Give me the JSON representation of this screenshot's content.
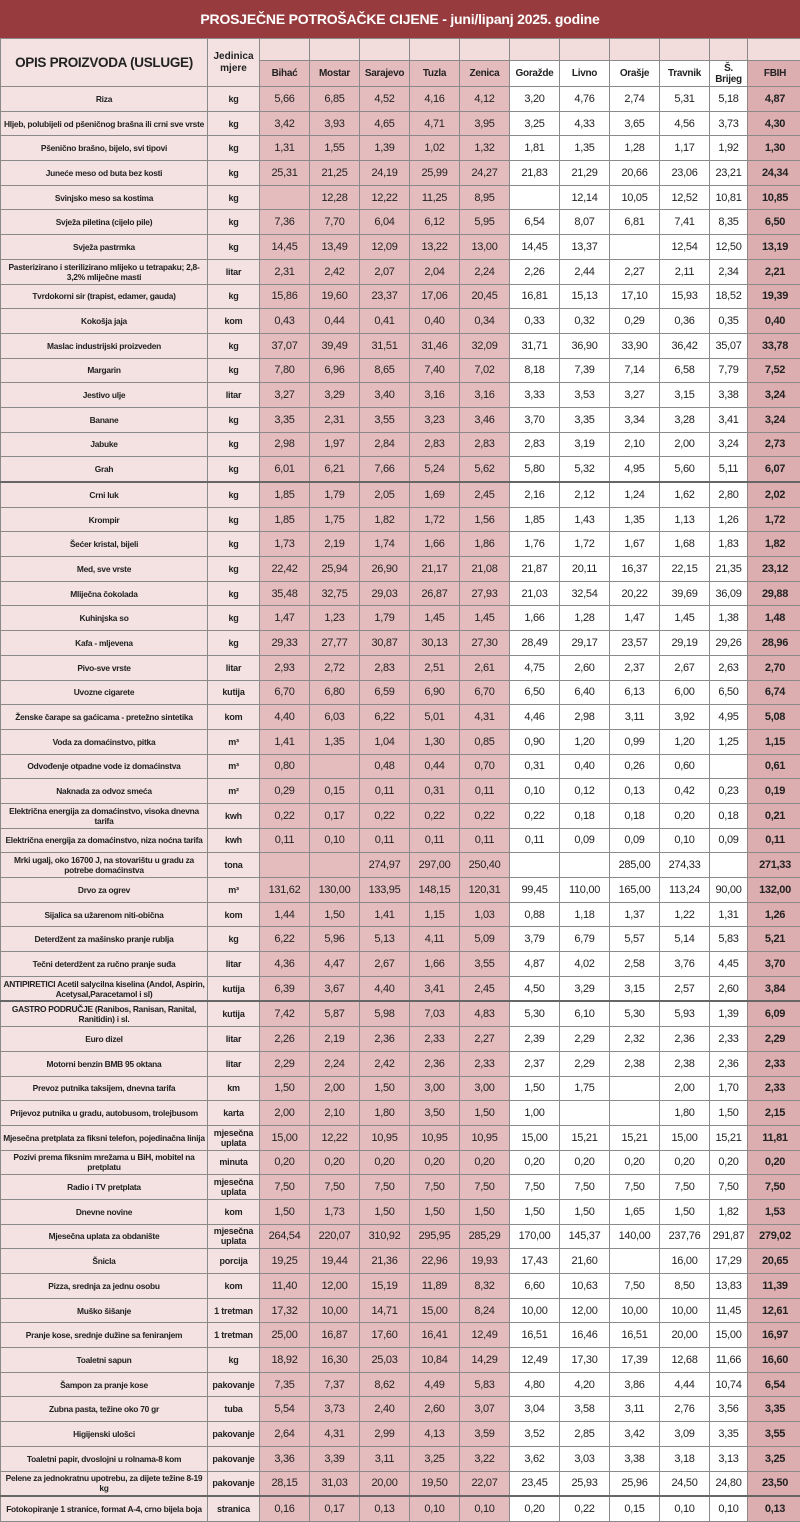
{
  "title": "PROSJEČNE POTROŠAČKE CIJENE - juni/lipanj 2025. godine",
  "header": {
    "description": "OPIS PROIZVODA (USLUGE)",
    "unit": "Jedinica mjere",
    "cities": [
      "Bihać",
      "Mostar",
      "Sarajevo",
      "Tuzla",
      "Zenica",
      "Goražde",
      "Livno",
      "Orašje",
      "Travnik",
      "Š. Brijeg",
      "FBIH"
    ]
  },
  "colors": {
    "title_bar": "#983b3e",
    "highlight_cities": "#e5bcbd",
    "fbih": "#dcaeb0",
    "description_bg": "#f4e2e2"
  },
  "rows": [
    {
      "desc": "Riza",
      "unit": "kg",
      "values": [
        "5,66",
        "6,85",
        "4,52",
        "4,16",
        "4,12",
        "3,20",
        "4,76",
        "2,74",
        "5,31",
        "5,18",
        "4,87"
      ]
    },
    {
      "desc": "Hljeb, polubijeli od pšeničnog brašna ili crni sve vrste",
      "unit": "kg",
      "values": [
        "3,42",
        "3,93",
        "4,65",
        "4,71",
        "3,95",
        "3,25",
        "4,33",
        "3,65",
        "4,56",
        "3,73",
        "4,30"
      ]
    },
    {
      "desc": "Pšenično brašno, bijelo, svi tipovi",
      "unit": "kg",
      "values": [
        "1,31",
        "1,55",
        "1,39",
        "1,02",
        "1,32",
        "1,81",
        "1,35",
        "1,28",
        "1,17",
        "1,92",
        "1,30"
      ]
    },
    {
      "desc": "Juneće meso od buta bez kosti",
      "unit": "kg",
      "values": [
        "25,31",
        "21,25",
        "24,19",
        "25,99",
        "24,27",
        "21,83",
        "21,29",
        "20,66",
        "23,06",
        "23,21",
        "24,34"
      ]
    },
    {
      "desc": "Svinjsko meso sa kostima",
      "unit": "kg",
      "values": [
        "",
        "12,28",
        "12,22",
        "11,25",
        "8,95",
        "",
        "12,14",
        "10,05",
        "12,52",
        "10,81",
        "10,85"
      ]
    },
    {
      "desc": "Svježa piletina (cijelo pile)",
      "unit": "kg",
      "values": [
        "7,36",
        "7,70",
        "6,04",
        "6,12",
        "5,95",
        "6,54",
        "8,07",
        "6,81",
        "7,41",
        "8,35",
        "6,50"
      ]
    },
    {
      "desc": "Svježa pastrmka",
      "unit": "kg",
      "values": [
        "14,45",
        "13,49",
        "12,09",
        "13,22",
        "13,00",
        "14,45",
        "13,37",
        "",
        "12,54",
        "12,50",
        "13,19"
      ]
    },
    {
      "desc": "Pasterizirano i sterilizirano mlijeko u tetrapaku; 2,8-3,2% mliječne masti",
      "unit": "litar",
      "values": [
        "2,31",
        "2,42",
        "2,07",
        "2,04",
        "2,24",
        "2,26",
        "2,44",
        "2,27",
        "2,11",
        "2,34",
        "2,21"
      ]
    },
    {
      "desc": "Tvrdokorni sir (trapist, edamer, gauda)",
      "unit": "kg",
      "values": [
        "15,86",
        "19,60",
        "23,37",
        "17,06",
        "20,45",
        "16,81",
        "15,13",
        "17,10",
        "15,93",
        "18,52",
        "19,39"
      ]
    },
    {
      "desc": "Kokošja jaja",
      "unit": "kom",
      "values": [
        "0,43",
        "0,44",
        "0,41",
        "0,40",
        "0,34",
        "0,33",
        "0,32",
        "0,29",
        "0,36",
        "0,35",
        "0,40"
      ]
    },
    {
      "desc": "Maslac industrijski proizveden",
      "unit": "kg",
      "values": [
        "37,07",
        "39,49",
        "31,51",
        "31,46",
        "32,09",
        "31,71",
        "36,90",
        "33,90",
        "36,42",
        "35,07",
        "33,78"
      ]
    },
    {
      "desc": "Margarin",
      "unit": "kg",
      "values": [
        "7,80",
        "6,96",
        "8,65",
        "7,40",
        "7,02",
        "8,18",
        "7,39",
        "7,14",
        "6,58",
        "7,79",
        "7,52"
      ]
    },
    {
      "desc": "Jestivo ulje",
      "unit": "litar",
      "values": [
        "3,27",
        "3,29",
        "3,40",
        "3,16",
        "3,16",
        "3,33",
        "3,53",
        "3,27",
        "3,15",
        "3,38",
        "3,24"
      ]
    },
    {
      "desc": "Banane",
      "unit": "kg",
      "values": [
        "3,35",
        "2,31",
        "3,55",
        "3,23",
        "3,46",
        "3,70",
        "3,35",
        "3,34",
        "3,28",
        "3,41",
        "3,24"
      ]
    },
    {
      "desc": "Jabuke",
      "unit": "kg",
      "values": [
        "2,98",
        "1,97",
        "2,84",
        "2,83",
        "2,83",
        "2,83",
        "3,19",
        "2,10",
        "2,00",
        "3,24",
        "2,73"
      ]
    },
    {
      "desc": "Grah",
      "unit": "kg",
      "values": [
        "6,01",
        "6,21",
        "7,66",
        "5,24",
        "5,62",
        "5,80",
        "5,32",
        "4,95",
        "5,60",
        "5,11",
        "6,07"
      ]
    },
    {
      "desc": "Crni luk",
      "unit": "kg",
      "values": [
        "1,85",
        "1,79",
        "2,05",
        "1,69",
        "2,45",
        "2,16",
        "2,12",
        "1,24",
        "1,62",
        "2,80",
        "2,02"
      ]
    },
    {
      "desc": "Krompir",
      "unit": "kg",
      "values": [
        "1,85",
        "1,75",
        "1,82",
        "1,72",
        "1,56",
        "1,85",
        "1,43",
        "1,35",
        "1,13",
        "1,26",
        "1,72"
      ]
    },
    {
      "desc": "Šećer kristal, bijeli",
      "unit": "kg",
      "values": [
        "1,73",
        "2,19",
        "1,74",
        "1,66",
        "1,86",
        "1,76",
        "1,72",
        "1,67",
        "1,68",
        "1,83",
        "1,82"
      ]
    },
    {
      "desc": "Med, sve vrste",
      "unit": "kg",
      "values": [
        "22,42",
        "25,94",
        "26,90",
        "21,17",
        "21,08",
        "21,87",
        "20,11",
        "16,37",
        "22,15",
        "21,35",
        "23,12"
      ]
    },
    {
      "desc": "Mliječna čokolada",
      "unit": "kg",
      "values": [
        "35,48",
        "32,75",
        "29,03",
        "26,87",
        "27,93",
        "21,03",
        "32,54",
        "20,22",
        "39,69",
        "36,09",
        "29,88"
      ]
    },
    {
      "desc": "Kuhinjska so",
      "unit": "kg",
      "values": [
        "1,47",
        "1,23",
        "1,79",
        "1,45",
        "1,45",
        "1,66",
        "1,28",
        "1,47",
        "1,45",
        "1,38",
        "1,48"
      ]
    },
    {
      "desc": "Kafa - mljevena",
      "unit": "kg",
      "values": [
        "29,33",
        "27,77",
        "30,87",
        "30,13",
        "27,30",
        "28,49",
        "29,17",
        "23,57",
        "29,19",
        "29,26",
        "28,96"
      ]
    },
    {
      "desc": "Pivo-sve vrste",
      "unit": "litar",
      "values": [
        "2,93",
        "2,72",
        "2,83",
        "2,51",
        "2,61",
        "4,75",
        "2,60",
        "2,37",
        "2,67",
        "2,63",
        "2,70"
      ]
    },
    {
      "desc": "Uvozne cigarete",
      "unit": "kutija",
      "values": [
        "6,70",
        "6,80",
        "6,59",
        "6,90",
        "6,70",
        "6,50",
        "6,40",
        "6,13",
        "6,00",
        "6,50",
        "6,74"
      ]
    },
    {
      "desc": "Ženske čarape sa gaćicama - pretežno sintetika",
      "unit": "kom",
      "values": [
        "4,40",
        "6,03",
        "6,22",
        "5,01",
        "4,31",
        "4,46",
        "2,98",
        "3,11",
        "3,92",
        "4,95",
        "5,08"
      ]
    },
    {
      "desc": "Voda za domaćinstvo, pitka",
      "unit": "m³",
      "values": [
        "1,41",
        "1,35",
        "1,04",
        "1,30",
        "0,85",
        "0,90",
        "1,20",
        "0,99",
        "1,20",
        "1,25",
        "1,15"
      ]
    },
    {
      "desc": "Odvođenje otpadne vode iz domaćinstva",
      "unit": "m³",
      "values": [
        "0,80",
        "",
        "0,48",
        "0,44",
        "0,70",
        "0,31",
        "0,40",
        "0,26",
        "0,60",
        "",
        "0,61"
      ]
    },
    {
      "desc": "Naknada za odvoz smeća",
      "unit": "m²",
      "values": [
        "0,29",
        "0,15",
        "0,11",
        "0,31",
        "0,11",
        "0,10",
        "0,12",
        "0,13",
        "0,42",
        "0,23",
        "0,19"
      ]
    },
    {
      "desc": "Električna energija  za domaćinstvo, visoka dnevna  tarifa",
      "unit": "kwh",
      "values": [
        "0,22",
        "0,17",
        "0,22",
        "0,22",
        "0,22",
        "0,22",
        "0,18",
        "0,18",
        "0,20",
        "0,18",
        "0,21"
      ]
    },
    {
      "desc": "Električna energija za domaćinstvo, niza noćna tarifa",
      "unit": "kwh",
      "values": [
        "0,11",
        "0,10",
        "0,11",
        "0,11",
        "0,11",
        "0,11",
        "0,09",
        "0,09",
        "0,10",
        "0,09",
        "0,11"
      ]
    },
    {
      "desc": "Mrki ugalj, oko 16700 J, na stovarištu u gradu za potrebe domaćinstva",
      "unit": "tona",
      "values": [
        "",
        "",
        "274,97",
        "297,00",
        "250,40",
        "",
        "",
        "285,00",
        "274,33",
        "",
        "271,33"
      ]
    },
    {
      "desc": "Drvo za ogrev",
      "unit": "m³",
      "values": [
        "131,62",
        "130,00",
        "133,95",
        "148,15",
        "120,31",
        "99,45",
        "110,00",
        "165,00",
        "113,24",
        "90,00",
        "132,00"
      ]
    },
    {
      "desc": "Sijalica sa užarenom niti-obična",
      "unit": "kom",
      "values": [
        "1,44",
        "1,50",
        "1,41",
        "1,15",
        "1,03",
        "0,88",
        "1,18",
        "1,37",
        "1,22",
        "1,31",
        "1,26"
      ]
    },
    {
      "desc": "Deterdžent za mašinsko pranje rublja",
      "unit": "kg",
      "values": [
        "6,22",
        "5,96",
        "5,13",
        "4,11",
        "5,09",
        "3,79",
        "6,79",
        "5,57",
        "5,14",
        "5,83",
        "5,21"
      ]
    },
    {
      "desc": "Tečni deterdžent za ručno pranje suđa",
      "unit": "litar",
      "values": [
        "4,36",
        "4,47",
        "2,67",
        "1,66",
        "3,55",
        "4,87",
        "4,02",
        "2,58",
        "3,76",
        "4,45",
        "3,70"
      ]
    },
    {
      "desc": "ANTIPIRETICI Acetil salycilna kiselina (Andol, Aspirin, Acetysal,Paracetamol i sl)",
      "unit": "kutija",
      "values": [
        "6,39",
        "3,67",
        "4,40",
        "3,41",
        "2,45",
        "4,50",
        "3,29",
        "3,15",
        "2,57",
        "2,60",
        "3,84"
      ]
    },
    {
      "desc": "GASTRO PODRUČJE  (Ranibos, Ranisan, Ranital, Ranitidin) i sl.",
      "unit": "kutija",
      "values": [
        "7,42",
        "5,87",
        "5,98",
        "7,03",
        "4,83",
        "5,30",
        "6,10",
        "5,30",
        "5,93",
        "1,39",
        "6,09"
      ]
    },
    {
      "desc": "Euro dizel",
      "unit": "litar",
      "values": [
        "2,26",
        "2,19",
        "2,36",
        "2,33",
        "2,27",
        "2,39",
        "2,29",
        "2,32",
        "2,36",
        "2,33",
        "2,29"
      ]
    },
    {
      "desc": "Motorni benzin BMB 95 oktana",
      "unit": "litar",
      "values": [
        "2,29",
        "2,24",
        "2,42",
        "2,36",
        "2,33",
        "2,37",
        "2,29",
        "2,38",
        "2,38",
        "2,36",
        "2,33"
      ]
    },
    {
      "desc": "Prevoz putnika taksijem, dnevna tarifa",
      "unit": "km",
      "values": [
        "1,50",
        "2,00",
        "1,50",
        "3,00",
        "3,00",
        "1,50",
        "1,75",
        "",
        "2,00",
        "1,70",
        "2,33"
      ]
    },
    {
      "desc": "Prijevoz putnika u gradu, autobusom, trolejbusom",
      "unit": "karta",
      "values": [
        "2,00",
        "2,10",
        "1,80",
        "3,50",
        "1,50",
        "1,00",
        "",
        "",
        "1,80",
        "1,50",
        "2,15"
      ]
    },
    {
      "desc": "Mjesečna pretplata za fiksni telefon, pojedinačna linija",
      "unit": "mjesečna uplata",
      "values": [
        "15,00",
        "12,22",
        "10,95",
        "10,95",
        "10,95",
        "15,00",
        "15,21",
        "15,21",
        "15,00",
        "15,21",
        "11,81"
      ]
    },
    {
      "desc": "Pozivi prema fiksnim mrežama u BiH, mobitel na pretplatu",
      "unit": "minuta",
      "values": [
        "0,20",
        "0,20",
        "0,20",
        "0,20",
        "0,20",
        "0,20",
        "0,20",
        "0,20",
        "0,20",
        "0,20",
        "0,20"
      ]
    },
    {
      "desc": "Radio i TV pretplata",
      "unit": "mjesečna uplata",
      "values": [
        "7,50",
        "7,50",
        "7,50",
        "7,50",
        "7,50",
        "7,50",
        "7,50",
        "7,50",
        "7,50",
        "7,50",
        "7,50"
      ]
    },
    {
      "desc": "Dnevne novine",
      "unit": "kom",
      "values": [
        "1,50",
        "1,73",
        "1,50",
        "1,50",
        "1,50",
        "1,50",
        "1,50",
        "1,65",
        "1,50",
        "1,82",
        "1,53"
      ]
    },
    {
      "desc": "Mjesečna uplata za obdanište",
      "unit": "mjesečna uplata",
      "values": [
        "264,54",
        "220,07",
        "310,92",
        "295,95",
        "285,29",
        "170,00",
        "145,37",
        "140,00",
        "237,76",
        "291,87",
        "279,02"
      ]
    },
    {
      "desc": "Šnicla",
      "unit": "porcija",
      "values": [
        "19,25",
        "19,44",
        "21,36",
        "22,96",
        "19,93",
        "17,43",
        "21,60",
        "",
        "16,00",
        "17,29",
        "20,65"
      ]
    },
    {
      "desc": "Pizza, srednja za jednu osobu",
      "unit": "kom",
      "values": [
        "11,40",
        "12,00",
        "15,19",
        "11,89",
        "8,32",
        "6,60",
        "10,63",
        "7,50",
        "8,50",
        "13,83",
        "11,39"
      ]
    },
    {
      "desc": "Muško šišanje",
      "unit": "1 tretman",
      "values": [
        "17,32",
        "10,00",
        "14,71",
        "15,00",
        "8,24",
        "10,00",
        "12,00",
        "10,00",
        "10,00",
        "11,45",
        "12,61"
      ]
    },
    {
      "desc": "Pranje kose, srednje dužine sa feniranjem",
      "unit": "1 tretman",
      "values": [
        "25,00",
        "16,87",
        "17,60",
        "16,41",
        "12,49",
        "16,51",
        "16,46",
        "16,51",
        "20,00",
        "15,00",
        "16,97"
      ]
    },
    {
      "desc": "Toaletni sapun",
      "unit": "kg",
      "values": [
        "18,92",
        "16,30",
        "25,03",
        "10,84",
        "14,29",
        "12,49",
        "17,30",
        "17,39",
        "12,68",
        "11,66",
        "16,60"
      ]
    },
    {
      "desc": "Šampon za pranje kose",
      "unit": "pakovanje",
      "values": [
        "7,35",
        "7,37",
        "8,62",
        "4,49",
        "5,83",
        "4,80",
        "4,20",
        "3,86",
        "4,44",
        "10,74",
        "6,54"
      ]
    },
    {
      "desc": "Zubna pasta, težine oko 70 gr",
      "unit": "tuba",
      "values": [
        "5,54",
        "3,73",
        "2,40",
        "2,60",
        "3,07",
        "3,04",
        "3,58",
        "3,11",
        "2,76",
        "3,56",
        "3,35"
      ]
    },
    {
      "desc": "Higijenski ulošci",
      "unit": "pakovanje",
      "values": [
        "2,64",
        "4,31",
        "2,99",
        "4,13",
        "3,59",
        "3,52",
        "2,85",
        "3,42",
        "3,09",
        "3,35",
        "3,55"
      ]
    },
    {
      "desc": "Toaletni papir, dvoslojni u rolnama-8 kom",
      "unit": "pakovanje",
      "values": [
        "3,36",
        "3,39",
        "3,11",
        "3,25",
        "3,22",
        "3,62",
        "3,03",
        "3,38",
        "3,18",
        "3,13",
        "3,25"
      ]
    },
    {
      "desc": "Pelene za jednokratnu upotrebu, za dijete težine 8-19 kg",
      "unit": "pakovanje",
      "values": [
        "28,15",
        "31,03",
        "20,00",
        "19,50",
        "22,07",
        "23,45",
        "25,93",
        "25,96",
        "24,50",
        "24,80",
        "23,50"
      ]
    },
    {
      "desc": "Fotokopiranje 1 stranice, format A-4, crno bijela boja",
      "unit": "stranica",
      "values": [
        "0,16",
        "0,17",
        "0,13",
        "0,10",
        "0,10",
        "0,20",
        "0,22",
        "0,15",
        "0,10",
        "0,10",
        "0,13"
      ]
    }
  ]
}
